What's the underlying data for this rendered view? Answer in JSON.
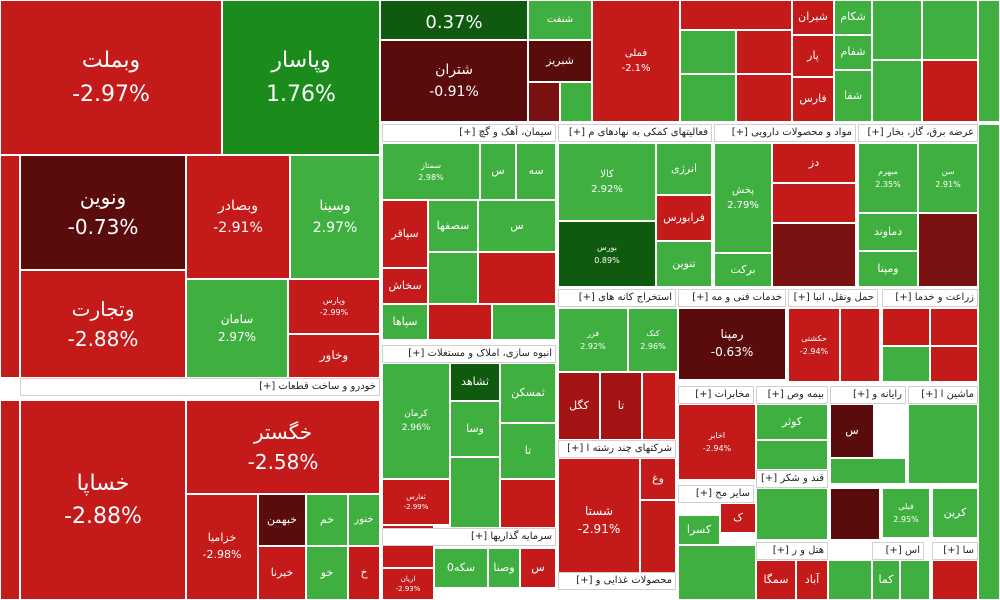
{
  "chart_data": {
    "type": "treemap",
    "colors": {
      "up_strong": "#1b8c1b",
      "up_light": "#3fb03f",
      "down": "#c41a1a",
      "down_light": "#a51414",
      "down_dark": "#5a0c0c",
      "down_mid": "#7a1212",
      "up_dark": "#0f5a0f"
    },
    "sectors": [
      {
        "name": "خودرو و ساخت قطعات"
      },
      {
        "name": "سیمان، آهک و گچ"
      },
      {
        "name": "فعالیتهای کمکی به نهادهای م"
      },
      {
        "name": "مواد و محصولات دارویی"
      },
      {
        "name": "عرضه برق، گاز، بخار"
      },
      {
        "name": "استخراج کانه های"
      },
      {
        "name": "خدمات فنی و مه"
      },
      {
        "name": "حمل ونقل، انبا"
      },
      {
        "name": "زراعت و خدما"
      },
      {
        "name": "انبوه سازی، املاک و مستغلات"
      },
      {
        "name": "مخابرات"
      },
      {
        "name": "بیمه وص"
      },
      {
        "name": "رایانه و"
      },
      {
        "name": "ماشین ا"
      },
      {
        "name": "شرکتهای چند رشته ا"
      },
      {
        "name": "قند و شکر"
      },
      {
        "name": "سرمایه گذاریها"
      },
      {
        "name": "سایر مح"
      },
      {
        "name": "محصولات غذایی و"
      },
      {
        "name": "هتل و ر"
      },
      {
        "name": "اس"
      },
      {
        "name": "سا"
      }
    ],
    "tiles": [
      {
        "name": "وبملت",
        "value": "-2.97%",
        "change": -2.97
      },
      {
        "name": "وپاسار",
        "value": "1.76%",
        "change": 1.76
      },
      {
        "name": "",
        "value": "0.37%",
        "change": 0.37
      },
      {
        "name": "شنفت",
        "value": "",
        "change": 1
      },
      {
        "name": "شتران",
        "value": "-0.91%",
        "change": -0.91
      },
      {
        "name": "شبریز",
        "value": "",
        "change": -1
      },
      {
        "name": "فملی",
        "value": "-2.1%",
        "change": -2.1
      },
      {
        "name": "شیران",
        "value": "",
        "change": -1
      },
      {
        "name": "شکام",
        "value": "",
        "change": 1
      },
      {
        "name": "پار",
        "value": "",
        "change": -1
      },
      {
        "name": "شفام",
        "value": "",
        "change": 1
      },
      {
        "name": "فارس",
        "value": "",
        "change": -1
      },
      {
        "name": "شفا",
        "value": "",
        "change": 1
      },
      {
        "name": "ونوین",
        "value": "-0.73%",
        "change": -0.73
      },
      {
        "name": "وبصادر",
        "value": "-2.91%",
        "change": -2.91
      },
      {
        "name": "وسینا",
        "value": "2.97%",
        "change": 2.97
      },
      {
        "name": "وتجارت",
        "value": "-2.88%",
        "change": -2.88
      },
      {
        "name": "سامان",
        "value": "2.97%",
        "change": 2.97
      },
      {
        "name": "وپارس",
        "value": "-2.99%",
        "change": -2.99
      },
      {
        "name": "وخاور",
        "value": "",
        "change": -1
      },
      {
        "name": "خساپا",
        "value": "-2.88%",
        "change": -2.88
      },
      {
        "name": "خگستر",
        "value": "-2.58%",
        "change": -2.58
      },
      {
        "name": "خزامیا",
        "value": "-2.98%",
        "change": -2.98
      },
      {
        "name": "خبهمن",
        "value": "",
        "change": -1
      },
      {
        "name": "خم",
        "value": "",
        "change": 1
      },
      {
        "name": "خنور",
        "value": "",
        "change": 1
      },
      {
        "name": "خیرنا",
        "value": "",
        "change": 1
      },
      {
        "name": "خو",
        "value": "",
        "change": 1
      },
      {
        "name": "خ",
        "value": "",
        "change": -1
      },
      {
        "name": "سمتاز",
        "value": "2.98%",
        "change": 2.98
      },
      {
        "name": "س",
        "value": "",
        "change": 1
      },
      {
        "name": "سه",
        "value": "",
        "change": 1
      },
      {
        "name": "سپاقر",
        "value": "",
        "change": -1
      },
      {
        "name": "سصفها",
        "value": "",
        "change": 1
      },
      {
        "name": "س",
        "value": "",
        "change": 1
      },
      {
        "name": "سخاش",
        "value": "",
        "change": -1
      },
      {
        "name": "سپاها",
        "value": "",
        "change": 1
      },
      {
        "name": "کالا",
        "value": "2.92%",
        "change": 2.92
      },
      {
        "name": "انرژی",
        "value": "",
        "change": 1
      },
      {
        "name": "فرابورس",
        "value": "",
        "change": -1
      },
      {
        "name": "بورس",
        "value": "0.89%",
        "change": 0.89
      },
      {
        "name": "تنوین",
        "value": "",
        "change": 1
      },
      {
        "name": "دز",
        "value": "",
        "change": -1
      },
      {
        "name": "پخش",
        "value": "2.79%",
        "change": 2.79
      },
      {
        "name": "برکت",
        "value": "",
        "change": 1
      },
      {
        "name": "مبهرم",
        "value": "2.35%",
        "change": 2.35
      },
      {
        "name": "سن",
        "value": "2.91%",
        "change": 2.91
      },
      {
        "name": "دماوند",
        "value": "",
        "change": 1
      },
      {
        "name": "ومپنا",
        "value": "",
        "change": 1
      },
      {
        "name": "فزر",
        "value": "2.92%",
        "change": 2.92
      },
      {
        "name": "کنک",
        "value": "2.96%",
        "change": 2.96
      },
      {
        "name": "کگل",
        "value": "",
        "change": -1
      },
      {
        "name": "تا",
        "value": "",
        "change": -1
      },
      {
        "name": "رمپنا",
        "value": "-0.63%",
        "change": -0.63
      },
      {
        "name": "حکشتی",
        "value": "-2.94%",
        "change": -2.94
      },
      {
        "name": "ثمسکن",
        "value": "",
        "change": 1
      },
      {
        "name": "ثشاهد",
        "value": "",
        "change": 1
      },
      {
        "name": "کرمان",
        "value": "2.96%",
        "change": 2.96
      },
      {
        "name": "وسا",
        "value": "",
        "change": 1
      },
      {
        "name": "تا",
        "value": "",
        "change": 1
      },
      {
        "name": "ثفارس",
        "value": "-2.99%",
        "change": -2.99
      },
      {
        "name": "اخابر",
        "value": "-2.94%",
        "change": -2.94
      },
      {
        "name": "کوثر",
        "value": "",
        "change": 1
      },
      {
        "name": "س",
        "value": "",
        "change": -1
      },
      {
        "name": "وغ",
        "value": "",
        "change": -1
      },
      {
        "name": "شستا",
        "value": "-2.91%",
        "change": -2.91
      },
      {
        "name": "ک",
        "value": "",
        "change": -1
      },
      {
        "name": "کسرا",
        "value": "",
        "change": 1
      },
      {
        "name": "سکه0",
        "value": "",
        "change": 1
      },
      {
        "name": "وصنا",
        "value": "",
        "change": 1
      },
      {
        "name": "س",
        "value": "",
        "change": 1
      },
      {
        "name": "اریان",
        "value": "-2.93%",
        "change": -2.93
      },
      {
        "name": "کرین",
        "value": "",
        "change": 1
      },
      {
        "name": "سمگا",
        "value": "",
        "change": -1
      },
      {
        "name": "آباد",
        "value": "",
        "change": -1
      },
      {
        "name": "کما",
        "value": "",
        "change": 1
      },
      {
        "name": "فیلی",
        "value": "2.95%",
        "change": 2.95
      }
    ]
  }
}
